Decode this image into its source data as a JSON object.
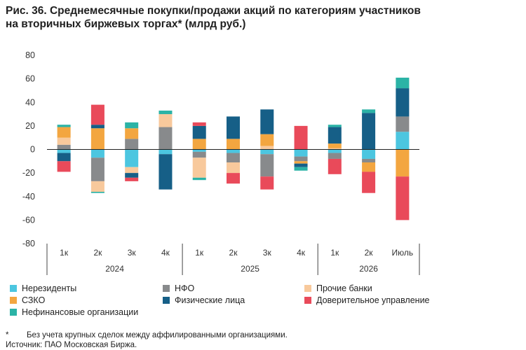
{
  "title_line1": "Рис. 36. Среднемесячные покупки/продажи акций по категориям участников",
  "title_line2": "на вторичных биржевых торгах* (млрд руб.)",
  "footnote_mark": "*",
  "footnote_text": "Без учета крупных сделок между аффилированными организациями.",
  "source": "Источник: ПАО Московская Биржа.",
  "chart_data": {
    "type": "bar",
    "stacked": true,
    "ylim": [
      -80,
      80
    ],
    "yticks": [
      -80,
      -60,
      -40,
      -20,
      0,
      20,
      40,
      60,
      80
    ],
    "grid": false,
    "legend_position": "bottom",
    "categories": [
      "1к",
      "2к",
      "3к",
      "4к",
      "1к",
      "2к",
      "3к",
      "4к",
      "1к",
      "2к",
      "Июль"
    ],
    "groups": [
      {
        "label": "2024",
        "count": 4
      },
      {
        "label": "2025",
        "count": 4
      },
      {
        "label": "2026",
        "count": 3
      }
    ],
    "series": [
      {
        "name": "Нерезиденты",
        "color": "#4cc6e0",
        "values": [
          -3,
          -7,
          -15,
          -4,
          -2,
          -3,
          -4,
          -6,
          -3,
          -8,
          15
        ]
      },
      {
        "name": "НФО",
        "color": "#888a8c",
        "values": [
          4,
          -20,
          9,
          19,
          -5,
          -8,
          -19,
          -4,
          -5,
          -3,
          13
        ]
      },
      {
        "name": "Прочие банки",
        "color": "#f8c99c",
        "values": [
          6,
          -9,
          -5,
          11,
          -17,
          -9,
          3,
          0,
          1,
          0,
          0
        ]
      },
      {
        "name": "СЗКО",
        "color": "#f3a640",
        "values": [
          9,
          18,
          9,
          0,
          9,
          9,
          10,
          -2,
          4,
          -8,
          -23
        ]
      },
      {
        "name": "Физические лица",
        "color": "#165f87",
        "values": [
          -7,
          3,
          -4,
          -30,
          11,
          19,
          21,
          -3,
          14,
          31,
          24
        ]
      },
      {
        "name": "Доверительное управление",
        "color": "#e94a5a",
        "values": [
          -9,
          17,
          -3,
          0,
          3,
          -9,
          -11,
          20,
          -13,
          -18,
          -37
        ]
      },
      {
        "name": "Нефинансовые организации",
        "color": "#2bb3a6",
        "values": [
          2,
          -1,
          5,
          3,
          -2,
          0,
          0,
          -3,
          2,
          3,
          9
        ]
      }
    ]
  }
}
